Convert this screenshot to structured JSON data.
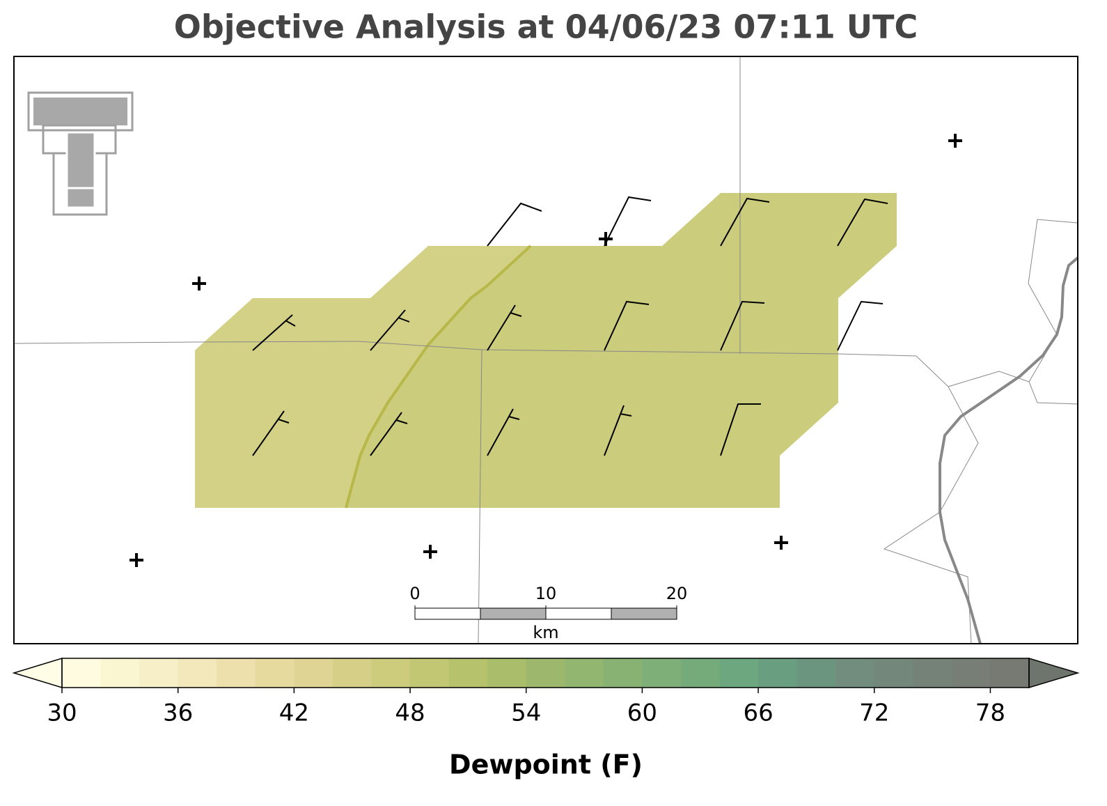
{
  "title": "Objective Analysis at 04/06/23 07:11 UTC",
  "colorbar": {
    "label": "Dewpoint (F)",
    "clim": [
      30,
      80
    ],
    "ticks": [
      30,
      36,
      42,
      48,
      54,
      60,
      66,
      72,
      78
    ],
    "colors": [
      "#fffbe0",
      "#fbf6d2",
      "#f6efc8",
      "#f2e8bb",
      "#ede0ad",
      "#e6da9f",
      "#dfd494",
      "#d6cf87",
      "#cdcc7c",
      "#c2c773",
      "#b6c26c",
      "#a9bd6b",
      "#9db86d",
      "#92b570",
      "#88b274",
      "#7eaf78",
      "#75ab7b",
      "#6da77f",
      "#699f80",
      "#6c9580",
      "#728c7e",
      "#74877b",
      "#758278",
      "#767e75",
      "#777a72"
    ],
    "under_color": "#fffde6",
    "over_color": "#6e756d"
  },
  "scale_bar": {
    "unit": "km",
    "ticks": [
      0,
      10,
      20
    ]
  }
}
